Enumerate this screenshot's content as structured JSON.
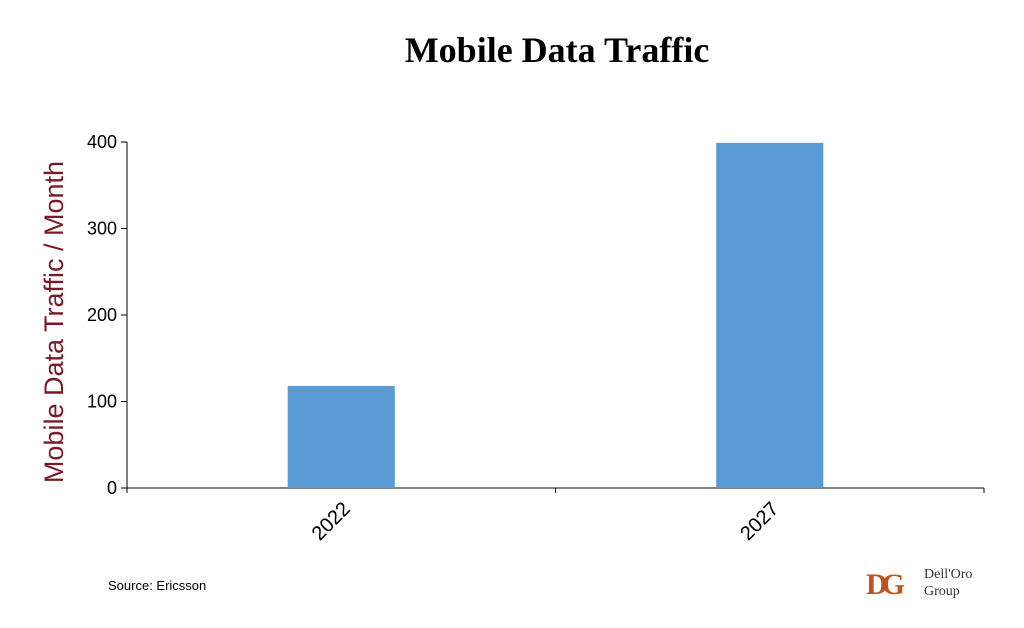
{
  "chart_data": {
    "type": "bar",
    "title": "Mobile Data Traffic",
    "xlabel": "",
    "ylabel": "Mobile Data Traffic / Month",
    "categories": [
      "2022",
      "2027"
    ],
    "values": [
      118,
      399
    ],
    "ylim": [
      0,
      400
    ],
    "yticks": [
      0,
      100,
      200,
      300,
      400
    ],
    "grid": false,
    "legend": "none"
  },
  "footer": {
    "source": "Source: Ericsson"
  },
  "logo": {
    "line1": "Dell'Oro",
    "line2": "Group"
  },
  "colors": {
    "bar": "#5b9bd5",
    "ylabel": "#7b1a24",
    "axis": "#000000",
    "logo_mark": "#c0521e"
  }
}
